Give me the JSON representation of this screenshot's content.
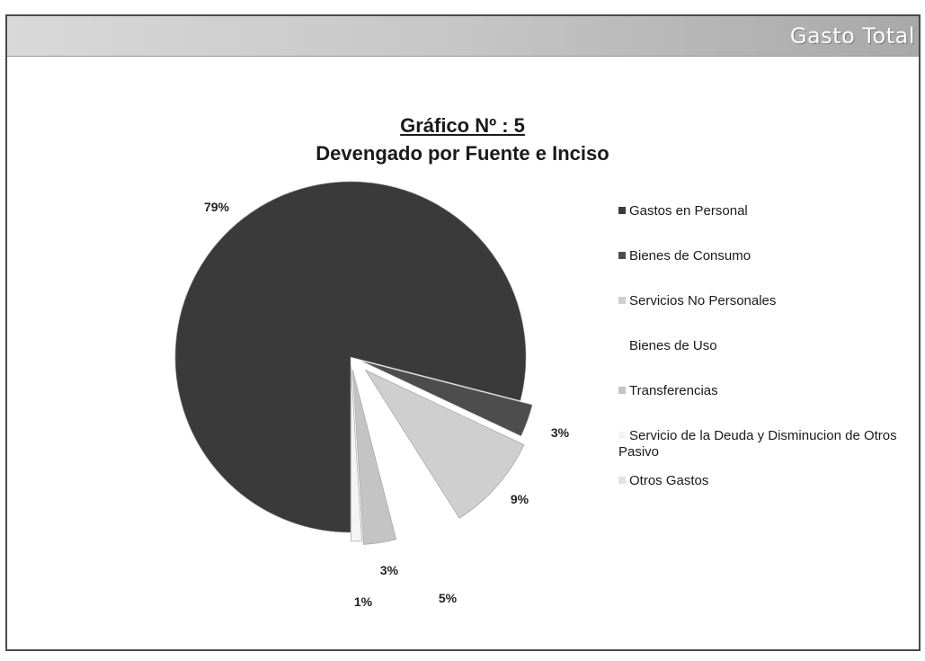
{
  "banner": {
    "title": "Gasto Total"
  },
  "chart_data": {
    "type": "pie",
    "title": "Gráfico Nº : 5",
    "subtitle": "Devengado por Fuente e Inciso",
    "legend_position": "right",
    "slices": [
      {
        "name": "Gastos en Personal",
        "value": 79,
        "label": "79%",
        "color": "#3a3a3a"
      },
      {
        "name": "Bienes de Consumo",
        "value": 3,
        "label": "3%",
        "color": "#4d4d4d"
      },
      {
        "name": "Servicios No Personales",
        "value": 9,
        "label": "9%",
        "color": "#cfcfcf"
      },
      {
        "name": "Bienes de Uso",
        "value": 5,
        "label": "5%",
        "color": "#ffffff"
      },
      {
        "name": "Transferencias",
        "value": 3,
        "label": "3%",
        "color": "#c4c4c4"
      },
      {
        "name": "Servicio de la Deuda y Disminucion de Otros Pasivo",
        "value": 1,
        "label": "1%",
        "color": "#f4f4f4"
      },
      {
        "name": "Otros Gastos",
        "value": 0,
        "label": "",
        "color": "#e2e2e2"
      }
    ]
  }
}
